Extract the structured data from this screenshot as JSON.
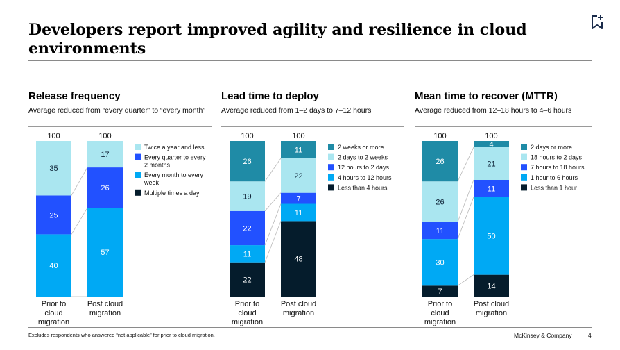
{
  "title": "Developers report improved agility and resilience in cloud environments",
  "footnote": "Excludes respondents who answered “not applicable” for prior to cloud migration.",
  "brand": "McKinsey & Company",
  "page_number": "4",
  "bookmark_icon": "bookmark-add-icon",
  "colors": {
    "darkest": "#051c2c",
    "deep_blue": "#2251ff",
    "cyan": "#00a9f4",
    "light_cyan": "#aae6f0",
    "teal": "#1f8ba6"
  },
  "panels": [
    {
      "heading": "Release frequency",
      "subtitle": "Average reduced from “every quarter” to “every month”"
    },
    {
      "heading": "Lead time to deploy",
      "subtitle": "Average reduced from 1–2 days to 7–12 hours"
    },
    {
      "heading": "Mean time to recover (MTTR)",
      "subtitle": "Average reduced from 12–18 hours to 4–6 hours"
    }
  ],
  "chart_data": [
    {
      "type": "bar",
      "stacked": true,
      "title": "Release frequency",
      "categories": [
        "Prior to cloud migration",
        "Post cloud migration"
      ],
      "totals": [
        100,
        100
      ],
      "ylim": [
        0,
        100
      ],
      "series": [
        {
          "name": "Multiple times a day",
          "values": [
            0,
            0
          ],
          "color": "#051c2c"
        },
        {
          "name": "Every month to every week",
          "values": [
            40,
            57
          ],
          "color": "#00a9f4"
        },
        {
          "name": "Every quarter to every 2 months",
          "values": [
            25,
            26
          ],
          "color": "#2251ff"
        },
        {
          "name": "Twice a year and less",
          "values": [
            35,
            17
          ],
          "color": "#aae6f0"
        }
      ],
      "legend": "right"
    },
    {
      "type": "bar",
      "stacked": true,
      "title": "Lead time to deploy",
      "categories": [
        "Prior to cloud migration",
        "Post cloud migration"
      ],
      "totals": [
        100,
        100
      ],
      "ylim": [
        0,
        100
      ],
      "series": [
        {
          "name": "Less than 4 hours",
          "values": [
            22,
            48
          ],
          "color": "#051c2c"
        },
        {
          "name": "4 hours to 12 hours",
          "values": [
            11,
            11
          ],
          "color": "#00a9f4"
        },
        {
          "name": "12 hours to 2 days",
          "values": [
            22,
            7
          ],
          "color": "#2251ff"
        },
        {
          "name": "2 days to 2 weeks",
          "values": [
            19,
            22
          ],
          "color": "#aae6f0"
        },
        {
          "name": "2 weeks or more",
          "values": [
            26,
            11
          ],
          "color": "#1f8ba6"
        }
      ],
      "legend": "right"
    },
    {
      "type": "bar",
      "stacked": true,
      "title": "Mean time to recover (MTTR)",
      "categories": [
        "Prior to cloud migration",
        "Post cloud migration"
      ],
      "totals": [
        100,
        100
      ],
      "ylim": [
        0,
        100
      ],
      "series": [
        {
          "name": "Less than 1 hour",
          "values": [
            7,
            14
          ],
          "color": "#051c2c"
        },
        {
          "name": "1 hour to 6 hours",
          "values": [
            30,
            50
          ],
          "color": "#00a9f4"
        },
        {
          "name": "7 hours to 18 hours",
          "values": [
            11,
            11
          ],
          "color": "#2251ff"
        },
        {
          "name": "18 hours to 2 days",
          "values": [
            26,
            21
          ],
          "color": "#aae6f0"
        },
        {
          "name": "2 days or more",
          "values": [
            26,
            4
          ],
          "color": "#1f8ba6"
        }
      ],
      "legend": "right"
    }
  ]
}
